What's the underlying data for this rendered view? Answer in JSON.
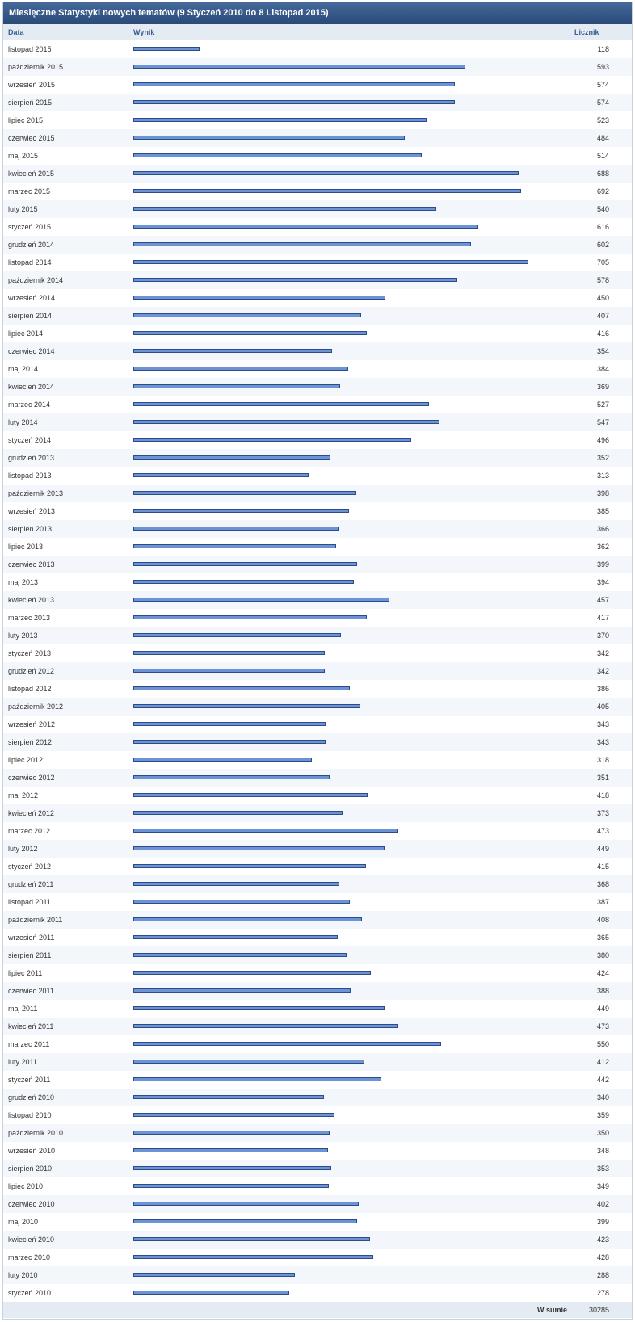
{
  "header": {
    "title": "Miesięczne Statystyki nowych tematów (9 Styczeń 2010 do 8 Listopad 2015)"
  },
  "columns": {
    "date": "Data",
    "result": "Wynik",
    "count": "Licznik"
  },
  "total": {
    "label": "W sumie",
    "value": "30285"
  },
  "chart_data": {
    "type": "bar",
    "orientation": "horizontal",
    "title": "Miesięczne Statystyki nowych tematów (9 Styczeń 2010 do 8 Listopad 2015)",
    "xlabel": "Wynik",
    "ylabel": "Data",
    "xlim": [
      0,
      705
    ],
    "categories": [
      "listopad 2015",
      "październik 2015",
      "wrzesień 2015",
      "sierpień 2015",
      "lipiec 2015",
      "czerwiec 2015",
      "maj 2015",
      "kwiecień 2015",
      "marzec 2015",
      "luty 2015",
      "styczeń 2015",
      "grudzień 2014",
      "listopad 2014",
      "październik 2014",
      "wrzesień 2014",
      "sierpień 2014",
      "lipiec 2014",
      "czerwiec 2014",
      "maj 2014",
      "kwiecień 2014",
      "marzec 2014",
      "luty 2014",
      "styczeń 2014",
      "grudzień 2013",
      "listopad 2013",
      "październik 2013",
      "wrzesień 2013",
      "sierpień 2013",
      "lipiec 2013",
      "czerwiec 2013",
      "maj 2013",
      "kwiecień 2013",
      "marzec 2013",
      "luty 2013",
      "styczeń 2013",
      "grudzień 2012",
      "listopad 2012",
      "październik 2012",
      "wrzesień 2012",
      "sierpień 2012",
      "lipiec 2012",
      "czerwiec 2012",
      "maj 2012",
      "kwiecień 2012",
      "marzec 2012",
      "luty 2012",
      "styczeń 2012",
      "grudzień 2011",
      "listopad 2011",
      "październik 2011",
      "wrzesień 2011",
      "sierpień 2011",
      "lipiec 2011",
      "czerwiec 2011",
      "maj 2011",
      "kwiecień 2011",
      "marzec 2011",
      "luty 2011",
      "styczeń 2011",
      "grudzień 2010",
      "listopad 2010",
      "październik 2010",
      "wrzesień 2010",
      "sierpień 2010",
      "lipiec 2010",
      "czerwiec 2010",
      "maj 2010",
      "kwiecień 2010",
      "marzec 2010",
      "luty 2010",
      "styczeń 2010"
    ],
    "values": [
      118,
      593,
      574,
      574,
      523,
      484,
      514,
      688,
      692,
      540,
      616,
      602,
      705,
      578,
      450,
      407,
      416,
      354,
      384,
      369,
      527,
      547,
      496,
      352,
      313,
      398,
      385,
      366,
      362,
      399,
      394,
      457,
      417,
      370,
      342,
      342,
      386,
      405,
      343,
      343,
      318,
      351,
      418,
      373,
      473,
      449,
      415,
      368,
      387,
      408,
      365,
      380,
      424,
      388,
      449,
      473,
      550,
      412,
      442,
      340,
      359,
      350,
      348,
      353,
      349,
      402,
      399,
      423,
      428,
      288,
      278
    ],
    "bar_color": "#6b93d6",
    "bar_border": "#2d4b86",
    "grid": false,
    "legend": "none"
  }
}
